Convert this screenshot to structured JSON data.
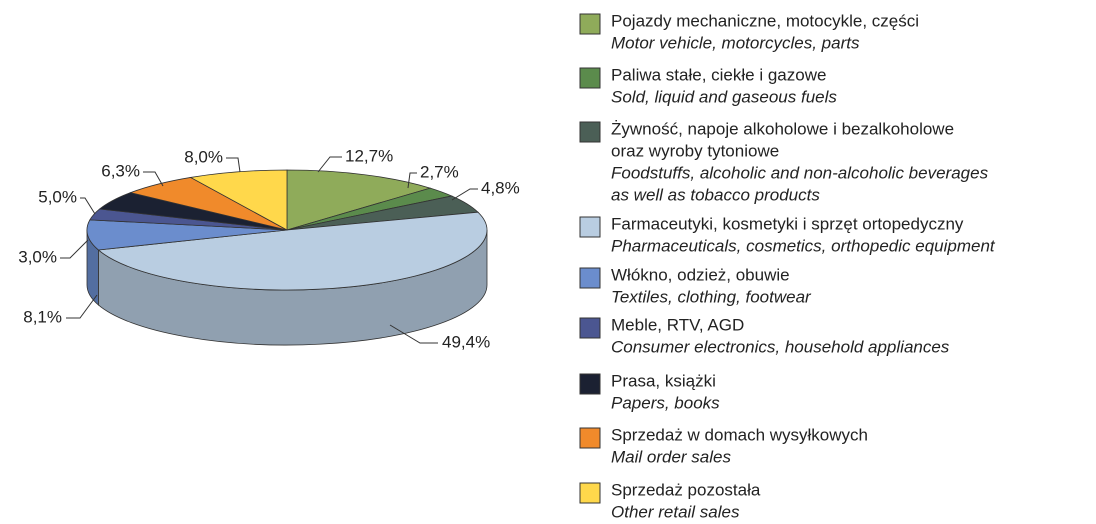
{
  "chart_data": {
    "type": "pie",
    "legend": [
      {
        "pl": [
          "Pojazdy mechaniczne, motocykle, części"
        ],
        "en": [
          "Motor vehicle, motorcycles, parts"
        ]
      },
      {
        "pl": [
          "Paliwa stałe, ciekłe i gazowe"
        ],
        "en": [
          "Sold, liquid and gaseous fuels"
        ]
      },
      {
        "pl": [
          "Żywność, napoje alkoholowe i bezalkoholowe",
          "oraz wyroby tytoniowe"
        ],
        "en": [
          "Foodstuffs, alcoholic and non-alcoholic beverages",
          "as well as tobacco products"
        ]
      },
      {
        "pl": [
          "Farmaceutyki, kosmetyki i sprzęt ortopedyczny"
        ],
        "en": [
          "Pharmaceuticals, cosmetics, orthopedic equipment"
        ]
      },
      {
        "pl": [
          "Włókno, odzież, obuwie"
        ],
        "en": [
          "Textiles, clothing, footwear"
        ]
      },
      {
        "pl": [
          "Meble, RTV, AGD"
        ],
        "en": [
          "Consumer electronics, household appliances"
        ]
      },
      {
        "pl": [
          "Prasa, książki"
        ],
        "en": [
          "Papers, books"
        ]
      },
      {
        "pl": [
          "Sprzedaż w domach wysyłkowych"
        ],
        "en": [
          "Mail order sales"
        ]
      },
      {
        "pl": [
          "Sprzedaż pozostała"
        ],
        "en": [
          "Other retail sales"
        ]
      }
    ],
    "values": [
      12.7,
      2.7,
      4.8,
      49.4,
      8.1,
      3.0,
      5.0,
      6.3,
      8.0
    ],
    "value_labels": [
      "12,7%",
      "2,7%",
      "4,8%",
      "49,4%",
      "8,1%",
      "3,0%",
      "5,0%",
      "6,3%",
      "8,0%"
    ],
    "colors": [
      "#8fab5a",
      "#5b8b4c",
      "#4b5f56",
      "#b9cde1",
      "#6b8dcd",
      "#4b5691",
      "#1b2132",
      "#f08a2b",
      "#ffd84b"
    ]
  }
}
